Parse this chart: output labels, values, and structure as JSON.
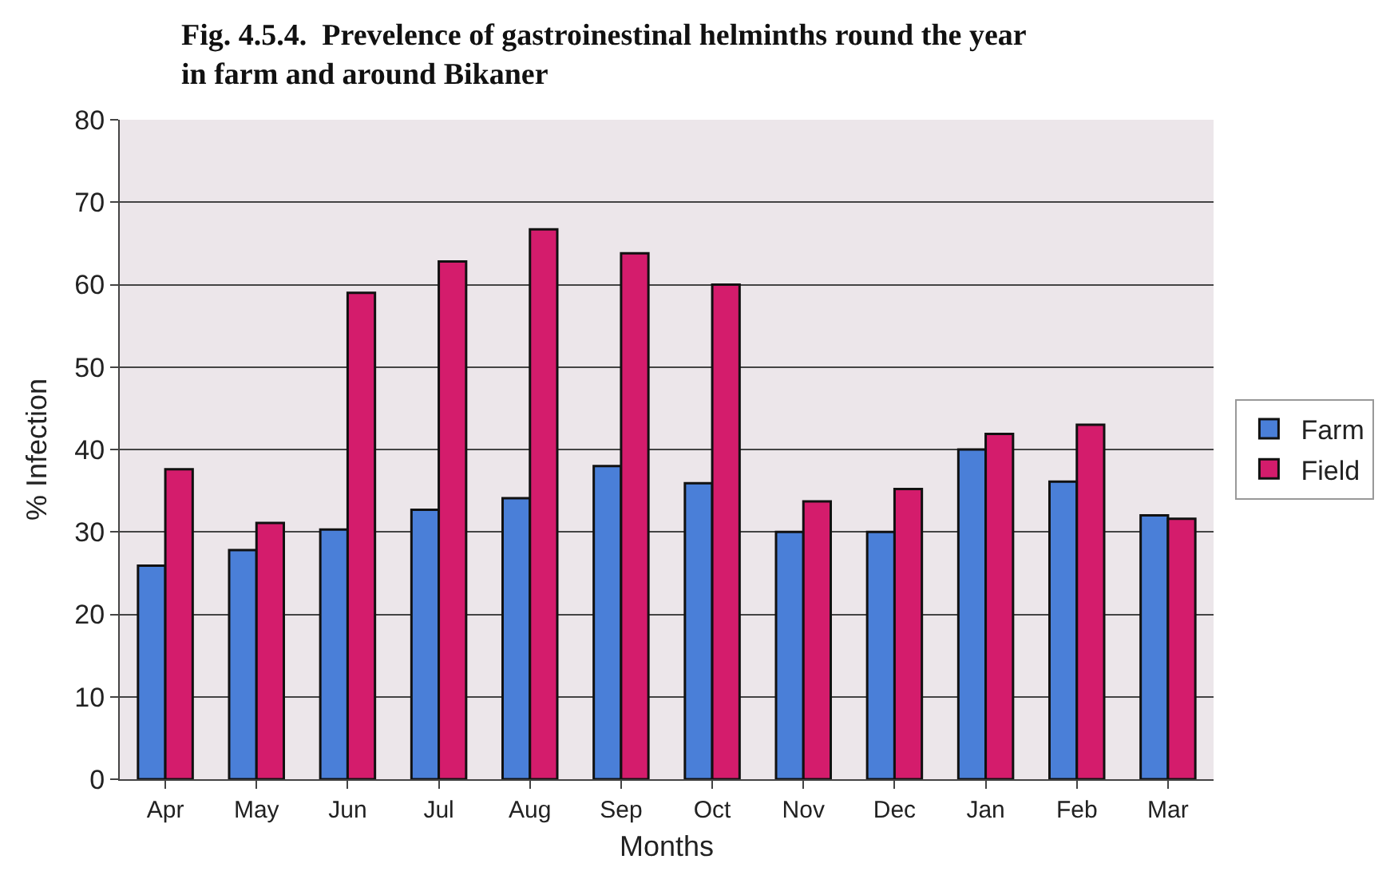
{
  "chart_data": {
    "type": "bar",
    "title": "Fig. 4.5.4.  Prevelence of gastroinestinal helminths round the year\nin farm and around Bikaner",
    "xlabel": "Months",
    "ylabel": "% Infection",
    "categories": [
      "Apr",
      "May",
      "Jun",
      "Jul",
      "Aug",
      "Sep",
      "Oct",
      "Nov",
      "Dec",
      "Jan",
      "Feb",
      "Mar"
    ],
    "series": [
      {
        "name": "Farm",
        "color": "#4a7fd8",
        "values": [
          25.9,
          27.8,
          30.3,
          32.7,
          34.1,
          38,
          35.9,
          30,
          30,
          40,
          36.1,
          32
        ]
      },
      {
        "name": "Field",
        "color": "#d41c6c",
        "values": [
          37.6,
          31.1,
          59,
          62.8,
          66.7,
          63.8,
          60,
          33.7,
          35.2,
          41.9,
          43,
          31.6
        ]
      }
    ],
    "ylim": [
      0,
      80
    ],
    "yticks": [
      0,
      10,
      20,
      30,
      40,
      50,
      60,
      70,
      80
    ],
    "grid": "y",
    "legend": "right"
  }
}
